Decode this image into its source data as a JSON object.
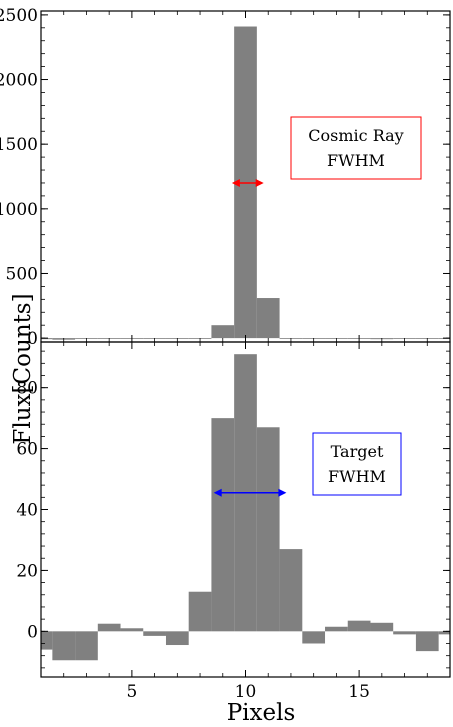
{
  "chart_data": [
    {
      "type": "bar",
      "panel": "top",
      "x": [
        1,
        2,
        3,
        4,
        5,
        6,
        7,
        8,
        9,
        10,
        11,
        12,
        13,
        14,
        15,
        16,
        17,
        18,
        19
      ],
      "values": [
        -8,
        -12,
        -5,
        -5,
        -5,
        -5,
        -5,
        -2,
        100,
        2410,
        310,
        -5,
        -5,
        -3,
        -1,
        -8,
        -3,
        -5,
        -3
      ],
      "xlim": [
        1,
        19
      ],
      "ylim": [
        -30,
        2530
      ],
      "yticks": [
        0,
        500,
        1000,
        1500,
        2000,
        2500
      ],
      "ytick_labels": [
        "0",
        "500",
        "1000",
        "1500",
        "2000",
        "2500"
      ],
      "annotation": {
        "lines": [
          "Cosmic Ray",
          "FWHM"
        ],
        "color": "#ff0000",
        "arrow_x": [
          9.4,
          10.8
        ],
        "arrow_y": 1200
      }
    },
    {
      "type": "bar",
      "panel": "bottom",
      "x": [
        1,
        2,
        3,
        4,
        5,
        6,
        7,
        8,
        9,
        10,
        11,
        12,
        13,
        14,
        15,
        16,
        17,
        18,
        19
      ],
      "values": [
        -6,
        -9.5,
        -9.5,
        2.5,
        1,
        -1.5,
        -4.5,
        13,
        70,
        91,
        67,
        27,
        -4,
        1.5,
        3.5,
        2.8,
        -1,
        -6.5,
        -1
      ],
      "xlim": [
        1,
        19
      ],
      "ylim": [
        -15,
        95
      ],
      "yticks": [
        0,
        20,
        40,
        60,
        80
      ],
      "ytick_labels": [
        "0",
        "20",
        "40",
        "60",
        "80"
      ],
      "annotation": {
        "lines": [
          "Target",
          "FWHM"
        ],
        "color": "#0000ff",
        "arrow_x": [
          8.6,
          11.8
        ],
        "arrow_y": 45.5
      }
    }
  ],
  "xaxis": {
    "label": "Pixels",
    "ticks": [
      5,
      10,
      15
    ],
    "tick_labels": [
      "5",
      "10",
      "15"
    ]
  },
  "yaxis": {
    "label": "Flux[Counts]"
  },
  "bar_color": "#808080"
}
